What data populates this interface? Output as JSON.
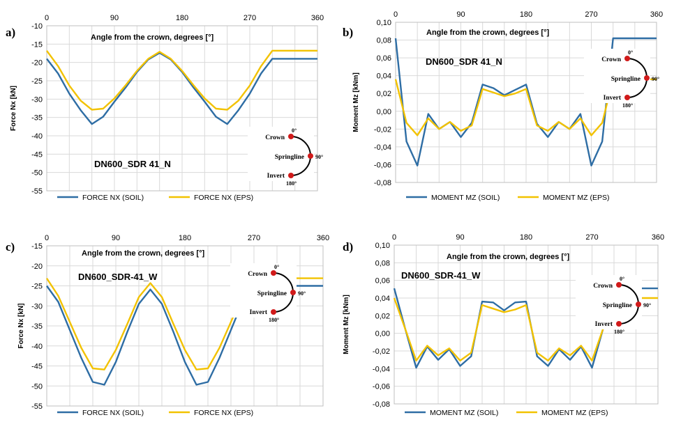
{
  "colors": {
    "soil": "#2e6da4",
    "eps": "#f2c200",
    "grid": "#d9d9d9",
    "frame": "#bfbfbf"
  },
  "inset": {
    "crown": "Crown",
    "springline": "Springline",
    "invert": "Invert",
    "deg_top": "0",
    "deg_mid": "90",
    "deg_bot": "180",
    "deg_sign": "°",
    "marker_color": "#d11a1a"
  },
  "chart_data": [
    {
      "type": "line",
      "panel_label": "a)",
      "title": "Angle from the crown, degrees   [°]",
      "subtitle": "DN600_SDR 41_N",
      "xlabel": "",
      "ylabel": "Force Nx [kN]",
      "xticks": [
        "0",
        "90",
        "180",
        "270",
        "360"
      ],
      "yticks": [
        "-10",
        "-15",
        "-20",
        "-25",
        "-30",
        "-35",
        "-40",
        "-45",
        "-50",
        "-55"
      ],
      "xlim": [
        0,
        360
      ],
      "ylim": [
        -55,
        -10
      ],
      "x": [
        0,
        15,
        30,
        45,
        60,
        75,
        90,
        105,
        120,
        135,
        150,
        165,
        180,
        195,
        210,
        225,
        240,
        255,
        270,
        285,
        300,
        315,
        330,
        345,
        360
      ],
      "series": [
        {
          "name": "FORCE NX (SOIL)",
          "color": "#2e6da4",
          "values": [
            -19,
            -23,
            -28.5,
            -33,
            -36.8,
            -34.8,
            -30.7,
            -26.8,
            -22.6,
            -19.2,
            -17.4,
            -19.2,
            -22.6,
            -26.8,
            -30.7,
            -34.8,
            -36.8,
            -33,
            -28.5,
            -23,
            -19,
            -19,
            -19,
            -19,
            -19
          ]
        },
        {
          "name": "FORCE NX (EPS)",
          "color": "#f2c200",
          "values": [
            -16.8,
            -21,
            -26.3,
            -30.4,
            -32.9,
            -32.6,
            -29.8,
            -26.2,
            -22.3,
            -19,
            -17.1,
            -19,
            -22.3,
            -26.2,
            -29.8,
            -32.6,
            -32.9,
            -30.4,
            -26.3,
            -21,
            -16.8,
            -16.8,
            -16.8,
            -16.8,
            -16.8
          ]
        }
      ]
    },
    {
      "type": "line",
      "panel_label": "b)",
      "title": "Angle from the crown, degrees   [°]",
      "subtitle": "DN600_SDR 41_N",
      "xlabel": "",
      "ylabel": "Moment Mz [kNm]",
      "xticks": [
        "0",
        "90",
        "180",
        "270",
        "360"
      ],
      "yticks": [
        "0,10",
        "0,08",
        "0,06",
        "0,04",
        "0,02",
        "0,00",
        "-0,02",
        "-0,04",
        "-0,06",
        "-0,08"
      ],
      "xlim": [
        0,
        360
      ],
      "ylim": [
        -0.08,
        0.1
      ],
      "x": [
        0,
        15,
        30,
        45,
        60,
        75,
        90,
        105,
        120,
        135,
        150,
        165,
        180,
        195,
        210,
        225,
        240,
        255,
        270,
        285,
        300,
        315,
        330,
        345,
        360
      ],
      "series": [
        {
          "name": "MOMENT MZ (SOIL)",
          "color": "#2e6da4",
          "values": [
            0.082,
            -0.034,
            -0.061,
            -0.003,
            -0.02,
            -0.012,
            -0.029,
            -0.013,
            0.03,
            0.026,
            0.018,
            0.024,
            0.03,
            -0.014,
            -0.029,
            -0.012,
            -0.02,
            -0.003,
            -0.061,
            -0.034,
            0.082,
            0.082,
            0.082,
            0.082,
            0.082
          ]
        },
        {
          "name": "MOMENT MZ (EPS)",
          "color": "#f2c200",
          "values": [
            0.036,
            -0.013,
            -0.027,
            -0.008,
            -0.02,
            -0.012,
            -0.022,
            -0.016,
            0.025,
            0.021,
            0.017,
            0.02,
            0.025,
            -0.016,
            -0.022,
            -0.012,
            -0.02,
            -0.008,
            -0.027,
            -0.013,
            0.036,
            0.036,
            0.036,
            0.036,
            0.036
          ]
        }
      ]
    },
    {
      "type": "line",
      "panel_label": "c)",
      "title": "Angle from the crown, degrees  [°]",
      "subtitle": "DN600_SDR-41_W",
      "xlabel": "",
      "ylabel": "Force Nx [kN]",
      "xticks": [
        "0",
        "90",
        "180",
        "270",
        "360"
      ],
      "yticks": [
        "-15",
        "-20",
        "-25",
        "-30",
        "-35",
        "-40",
        "-45",
        "-50",
        "-55"
      ],
      "xlim": [
        0,
        360
      ],
      "ylim": [
        -55,
        -15
      ],
      "x": [
        0,
        15,
        30,
        45,
        60,
        75,
        90,
        105,
        120,
        135,
        150,
        165,
        180,
        195,
        210,
        225,
        240,
        255,
        270,
        285,
        300,
        315,
        330,
        345,
        360
      ],
      "series": [
        {
          "name": "FORCE NX (SOIL)",
          "color": "#2e6da4",
          "values": [
            -25,
            -29,
            -36,
            -43,
            -49,
            -49.7,
            -44,
            -36.5,
            -29.5,
            -25.9,
            -29.5,
            -36.5,
            -44,
            -49.7,
            -49,
            -43,
            -36,
            -29,
            -25,
            -25,
            -25,
            -25,
            -25,
            -25,
            -25
          ]
        },
        {
          "name": "FORCE NX (EPS)",
          "color": "#f2c200",
          "values": [
            -23.1,
            -27.5,
            -34,
            -40.5,
            -45.6,
            -45.9,
            -41,
            -34.5,
            -27.8,
            -24.3,
            -27.8,
            -34.5,
            -41,
            -45.9,
            -45.6,
            -40.5,
            -34,
            -27.5,
            -23.1,
            -23.1,
            -23.1,
            -23.1,
            -23.1,
            -23.1,
            -23.1
          ]
        }
      ]
    },
    {
      "type": "line",
      "panel_label": "d)",
      "title": "Angle from the crown, degrees [°]",
      "subtitle": "DN600_SDR-41_W",
      "xlabel": "",
      "ylabel": "Moment Mz [kNm]",
      "xticks": [
        "0",
        "90",
        "180",
        "270",
        "360"
      ],
      "yticks": [
        "0,10",
        "0,08",
        "0,06",
        "0,04",
        "0,02",
        "0,00",
        "-0,02",
        "-0,04",
        "-0,06",
        "-0,08"
      ],
      "xlim": [
        0,
        360
      ],
      "ylim": [
        -0.08,
        0.1
      ],
      "x": [
        0,
        15,
        30,
        45,
        60,
        75,
        90,
        105,
        120,
        135,
        150,
        165,
        180,
        195,
        210,
        225,
        240,
        255,
        270,
        285,
        300,
        315,
        330,
        345,
        360
      ],
      "series": [
        {
          "name": "MOMENT MZ (SOIL)",
          "color": "#2e6da4",
          "values": [
            0.051,
            0.005,
            -0.039,
            -0.015,
            -0.03,
            -0.018,
            -0.037,
            -0.026,
            0.036,
            0.035,
            0.026,
            0.035,
            0.036,
            -0.026,
            -0.037,
            -0.018,
            -0.03,
            -0.015,
            -0.039,
            0.005,
            0.051,
            0.051,
            0.051,
            0.051,
            0.051
          ]
        },
        {
          "name": "MOMENT MZ (EPS)",
          "color": "#f2c200",
          "values": [
            0.04,
            0.005,
            -0.031,
            -0.014,
            -0.025,
            -0.017,
            -0.031,
            -0.022,
            0.032,
            0.028,
            0.024,
            0.027,
            0.032,
            -0.022,
            -0.031,
            -0.017,
            -0.025,
            -0.014,
            -0.031,
            0.005,
            0.04,
            0.04,
            0.04,
            0.04,
            0.04
          ]
        }
      ]
    }
  ]
}
